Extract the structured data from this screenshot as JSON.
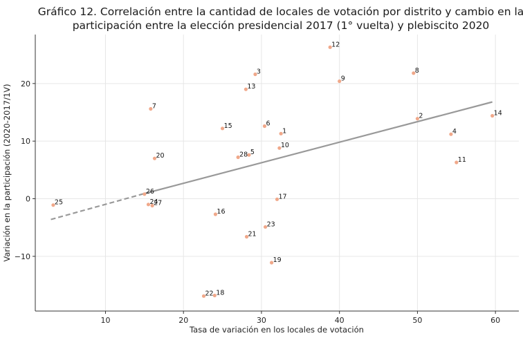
{
  "chart_data": {
    "type": "scatter",
    "title_lines": [
      "Gráfico 12. Correlación entre la cantidad de locales de votación por distrito y cambio en la",
      "participación entre la elección presidencial 2017 (1° vuelta) y plebiscito 2020"
    ],
    "xlabel": "Tasa de variación en los locales de votación",
    "ylabel": "Variación en la participación (2020-2017/1V)",
    "xlim": [
      1,
      63
    ],
    "ylim": [
      -19.5,
      28.5
    ],
    "xticks": [
      10,
      20,
      30,
      40,
      50,
      60
    ],
    "yticks": [
      -10,
      0,
      10,
      20
    ],
    "grid": true,
    "point_color": "#f0a88a",
    "line_color": "#999999",
    "points": [
      {
        "label": "1",
        "x": 32.5,
        "y": 11.3
      },
      {
        "label": "2",
        "x": 50.0,
        "y": 13.9
      },
      {
        "label": "3",
        "x": 29.2,
        "y": 21.6
      },
      {
        "label": "4",
        "x": 54.3,
        "y": 11.2
      },
      {
        "label": "5",
        "x": 28.4,
        "y": 7.6
      },
      {
        "label": "6",
        "x": 30.4,
        "y": 12.6
      },
      {
        "label": "7",
        "x": 15.8,
        "y": 15.6
      },
      {
        "label": "8",
        "x": 49.5,
        "y": 21.8
      },
      {
        "label": "9",
        "x": 40.0,
        "y": 20.4
      },
      {
        "label": "10",
        "x": 32.3,
        "y": 8.8
      },
      {
        "label": "11",
        "x": 55.0,
        "y": 6.3
      },
      {
        "label": "12",
        "x": 38.8,
        "y": 26.3
      },
      {
        "label": "13",
        "x": 28.0,
        "y": 19.0
      },
      {
        "label": "14",
        "x": 59.6,
        "y": 14.4
      },
      {
        "label": "15",
        "x": 25.0,
        "y": 12.2
      },
      {
        "label": "16",
        "x": 24.1,
        "y": -2.7
      },
      {
        "label": "17",
        "x": 32.0,
        "y": -0.1
      },
      {
        "label": "18",
        "x": 24.0,
        "y": -16.8
      },
      {
        "label": "19",
        "x": 31.3,
        "y": -11.1
      },
      {
        "label": "20",
        "x": 16.3,
        "y": 7.0
      },
      {
        "label": "21",
        "x": 28.1,
        "y": -6.6
      },
      {
        "label": "22",
        "x": 22.6,
        "y": -16.9
      },
      {
        "label": "23",
        "x": 30.5,
        "y": -4.9
      },
      {
        "label": "24",
        "x": 15.5,
        "y": -1.0
      },
      {
        "label": "25",
        "x": 3.3,
        "y": -1.1
      },
      {
        "label": "26",
        "x": 15.0,
        "y": 0.8
      },
      {
        "label": "27",
        "x": 16.0,
        "y": -1.2
      },
      {
        "label": "28",
        "x": 27.0,
        "y": 7.2
      }
    ],
    "trend_line": {
      "solid": {
        "x": [
          15.0,
          59.6
        ],
        "y": [
          0.9,
          16.8
        ]
      },
      "dashed": {
        "x": [
          3.0,
          15.0
        ],
        "y": [
          -3.6,
          0.9
        ]
      }
    }
  }
}
